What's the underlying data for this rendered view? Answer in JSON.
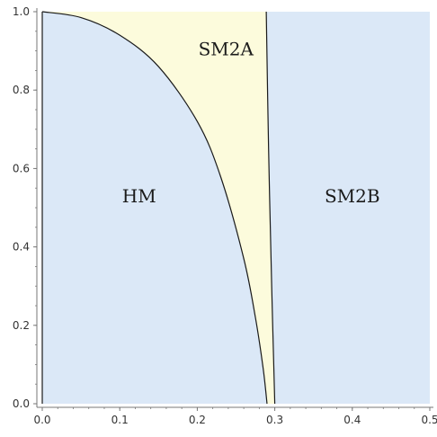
{
  "chart_data": {
    "type": "area",
    "title": "",
    "xlabel": "",
    "ylabel": "",
    "xlim": [
      0,
      0.5
    ],
    "ylim": [
      0,
      1.0
    ],
    "x_ticks": [
      "0.0",
      "0.1",
      "0.2",
      "0.3",
      "0.4",
      "0.5"
    ],
    "y_ticks": [
      "0.0",
      "0.2",
      "0.4",
      "0.6",
      "0.8",
      "1.0"
    ],
    "grid": false,
    "boundaries": [
      {
        "id": "hm-sm2a",
        "x": [
          0.0,
          0.05,
          0.1,
          0.15,
          0.2,
          0.23,
          0.26,
          0.275,
          0.285,
          0.29
        ],
        "y": [
          1.0,
          0.985,
          0.94,
          0.86,
          0.72,
          0.58,
          0.37,
          0.22,
          0.09,
          0.0
        ]
      },
      {
        "id": "sm2a-sm2b",
        "x": [
          0.289,
          0.292,
          0.296,
          0.3
        ],
        "y": [
          1.0,
          0.65,
          0.3,
          0.0
        ]
      }
    ],
    "regions": [
      {
        "label": "HM",
        "label_at": [
          0.125,
          0.53
        ],
        "color": "#dbe8f7"
      },
      {
        "label": "SM2A",
        "label_at": [
          0.237,
          0.905
        ],
        "color": "#fcfbdc"
      },
      {
        "label": "SM2B",
        "label_at": [
          0.4,
          0.53
        ],
        "color": "#dbe8f7"
      }
    ],
    "line_color": "#1a1a1a",
    "axis_color": "#777777"
  }
}
